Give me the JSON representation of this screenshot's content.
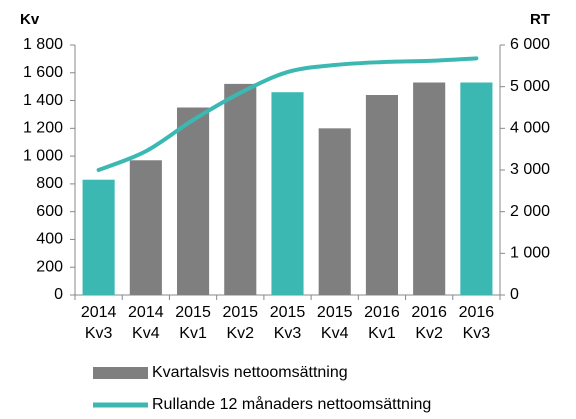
{
  "chart_data": {
    "type": "bar_line",
    "y_label": "Kv",
    "y2_label": "RT",
    "categories": [
      [
        "2014",
        "Kv3"
      ],
      [
        "2014",
        "Kv4"
      ],
      [
        "2015",
        "Kv1"
      ],
      [
        "2015",
        "Kv2"
      ],
      [
        "2015",
        "Kv3"
      ],
      [
        "2015",
        "Kv4"
      ],
      [
        "2016",
        "Kv1"
      ],
      [
        "2016",
        "Kv2"
      ],
      [
        "2016",
        "Kv3"
      ]
    ],
    "series": [
      {
        "name": "Kvartalsvis nettoomsättning",
        "type": "bar",
        "color": "#7f7f7f",
        "colors": [
          "#3cb8b2",
          "#7f7f7f",
          "#7f7f7f",
          "#7f7f7f",
          "#3cb8b2",
          "#7f7f7f",
          "#7f7f7f",
          "#7f7f7f",
          "#3cb8b2"
        ],
        "values": [
          830,
          970,
          1350,
          1520,
          1460,
          1200,
          1440,
          1530,
          1530
        ]
      },
      {
        "name": "Rullande 12 månaders nettoomsättning",
        "type": "line",
        "axis": "y2",
        "color": "#3cb8b2",
        "values": [
          3000,
          3450,
          4200,
          4850,
          5350,
          5520,
          5590,
          5620,
          5680
        ]
      }
    ],
    "ylim": [
      0,
      1800
    ],
    "yticks": [
      0,
      200,
      400,
      600,
      800,
      {
        "value": 1000,
        "label": "1 000"
      },
      {
        "value": 1200,
        "label": "1 200"
      },
      {
        "value": 1400,
        "label": "1 400"
      },
      {
        "value": 1600,
        "label": "1 600"
      },
      {
        "value": 1800,
        "label": "1 800"
      }
    ],
    "y2lim": [
      0,
      6000
    ],
    "y2ticks": [
      0,
      {
        "value": 1000,
        "label": "1 000"
      },
      {
        "value": 2000,
        "label": "2 000"
      },
      {
        "value": 3000,
        "label": "3 000"
      },
      {
        "value": 4000,
        "label": "4 000"
      },
      {
        "value": 5000,
        "label": "5 000"
      },
      {
        "value": 6000,
        "label": "6 000"
      }
    ],
    "grid": false
  }
}
